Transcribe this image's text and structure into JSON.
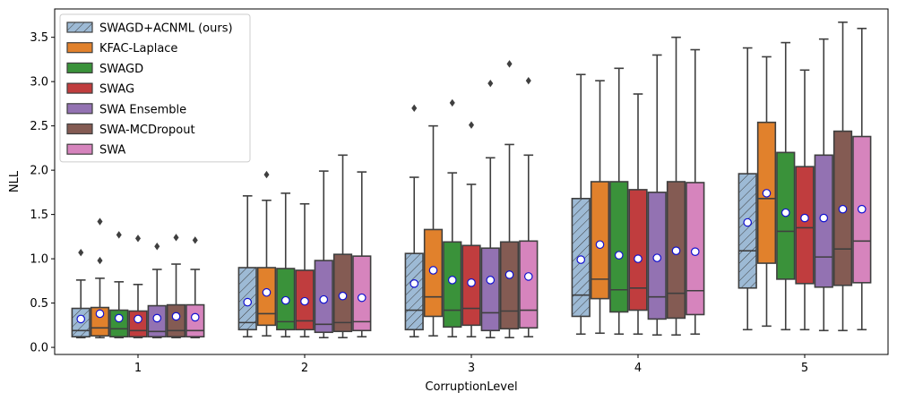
{
  "chart_data": {
    "type": "boxplot",
    "xlabel": "CorruptionLevel",
    "ylabel": "NLL",
    "ylim": [
      -0.08,
      3.82
    ],
    "yticks": [
      0.0,
      0.5,
      1.0,
      1.5,
      2.0,
      2.5,
      3.0,
      3.5
    ],
    "ytick_labels": [
      "0.0",
      "0.5",
      "1.0",
      "1.5",
      "2.0",
      "2.5",
      "3.0",
      "3.5"
    ],
    "categories": [
      "1",
      "2",
      "3",
      "4",
      "5"
    ],
    "legend_position": "top-left",
    "series": [
      {
        "name": "SWAGD+ACNML (ours)",
        "color": "#9dbad5",
        "hatch": true,
        "boxes": [
          {
            "q1": 0.12,
            "median": 0.19,
            "q3": 0.44,
            "whislo": 0.11,
            "whishi": 0.76,
            "mean": 0.32,
            "outliers": [
              1.07
            ]
          },
          {
            "q1": 0.2,
            "median": 0.28,
            "q3": 0.9,
            "whislo": 0.12,
            "whishi": 1.71,
            "mean": 0.51,
            "outliers": []
          },
          {
            "q1": 0.2,
            "median": 0.42,
            "q3": 1.06,
            "whislo": 0.12,
            "whishi": 1.92,
            "mean": 0.72,
            "outliers": [
              2.7
            ]
          },
          {
            "q1": 0.35,
            "median": 0.59,
            "q3": 1.68,
            "whislo": 0.15,
            "whishi": 3.08,
            "mean": 0.99,
            "outliers": []
          },
          {
            "q1": 0.67,
            "median": 1.09,
            "q3": 1.96,
            "whislo": 0.2,
            "whishi": 3.38,
            "mean": 1.41,
            "outliers": []
          }
        ]
      },
      {
        "name": "KFAC-Laplace",
        "color": "#e1812c",
        "hatch": false,
        "boxes": [
          {
            "q1": 0.13,
            "median": 0.22,
            "q3": 0.45,
            "whislo": 0.11,
            "whishi": 0.78,
            "mean": 0.38,
            "outliers": [
              0.98,
              1.42
            ]
          },
          {
            "q1": 0.25,
            "median": 0.38,
            "q3": 0.9,
            "whislo": 0.13,
            "whishi": 1.66,
            "mean": 0.62,
            "outliers": [
              1.95
            ]
          },
          {
            "q1": 0.35,
            "median": 0.57,
            "q3": 1.33,
            "whislo": 0.13,
            "whishi": 2.5,
            "mean": 0.87,
            "outliers": []
          },
          {
            "q1": 0.55,
            "median": 0.77,
            "q3": 1.87,
            "whislo": 0.16,
            "whishi": 3.01,
            "mean": 1.16,
            "outliers": []
          },
          {
            "q1": 0.95,
            "median": 1.68,
            "q3": 2.54,
            "whislo": 0.24,
            "whishi": 3.28,
            "mean": 1.74,
            "outliers": []
          }
        ]
      },
      {
        "name": "SWAGD",
        "color": "#3a923a",
        "hatch": false,
        "boxes": [
          {
            "q1": 0.12,
            "median": 0.21,
            "q3": 0.42,
            "whislo": 0.11,
            "whishi": 0.74,
            "mean": 0.33,
            "outliers": [
              1.27
            ]
          },
          {
            "q1": 0.2,
            "median": 0.29,
            "q3": 0.89,
            "whislo": 0.12,
            "whishi": 1.74,
            "mean": 0.53,
            "outliers": []
          },
          {
            "q1": 0.23,
            "median": 0.42,
            "q3": 1.19,
            "whislo": 0.12,
            "whishi": 1.97,
            "mean": 0.76,
            "outliers": [
              2.76
            ]
          },
          {
            "q1": 0.4,
            "median": 0.65,
            "q3": 1.87,
            "whislo": 0.15,
            "whishi": 3.15,
            "mean": 1.04,
            "outliers": []
          },
          {
            "q1": 0.77,
            "median": 1.31,
            "q3": 2.2,
            "whislo": 0.2,
            "whishi": 3.44,
            "mean": 1.52,
            "outliers": []
          }
        ]
      },
      {
        "name": "SWAG",
        "color": "#c03d3e",
        "hatch": false,
        "boxes": [
          {
            "q1": 0.12,
            "median": 0.19,
            "q3": 0.41,
            "whislo": 0.11,
            "whishi": 0.71,
            "mean": 0.32,
            "outliers": [
              1.23
            ]
          },
          {
            "q1": 0.2,
            "median": 0.3,
            "q3": 0.87,
            "whislo": 0.12,
            "whishi": 1.62,
            "mean": 0.52,
            "outliers": []
          },
          {
            "q1": 0.25,
            "median": 0.44,
            "q3": 1.15,
            "whislo": 0.12,
            "whishi": 1.84,
            "mean": 0.73,
            "outliers": [
              2.51
            ]
          },
          {
            "q1": 0.42,
            "median": 0.67,
            "q3": 1.78,
            "whislo": 0.15,
            "whishi": 2.86,
            "mean": 1.0,
            "outliers": []
          },
          {
            "q1": 0.72,
            "median": 1.35,
            "q3": 2.04,
            "whislo": 0.2,
            "whishi": 3.13,
            "mean": 1.46,
            "outliers": []
          }
        ]
      },
      {
        "name": "SWA Ensemble",
        "color": "#9372b2",
        "hatch": false,
        "boxes": [
          {
            "q1": 0.12,
            "median": 0.18,
            "q3": 0.47,
            "whislo": 0.11,
            "whishi": 0.88,
            "mean": 0.33,
            "outliers": [
              1.14
            ]
          },
          {
            "q1": 0.17,
            "median": 0.26,
            "q3": 0.98,
            "whislo": 0.11,
            "whishi": 1.99,
            "mean": 0.54,
            "outliers": []
          },
          {
            "q1": 0.19,
            "median": 0.39,
            "q3": 1.12,
            "whislo": 0.11,
            "whishi": 2.14,
            "mean": 0.76,
            "outliers": [
              2.98
            ]
          },
          {
            "q1": 0.32,
            "median": 0.57,
            "q3": 1.75,
            "whislo": 0.14,
            "whishi": 3.3,
            "mean": 1.01,
            "outliers": []
          },
          {
            "q1": 0.68,
            "median": 1.02,
            "q3": 2.17,
            "whislo": 0.19,
            "whishi": 3.48,
            "mean": 1.46,
            "outliers": []
          }
        ]
      },
      {
        "name": "SWA-MCDropout",
        "color": "#845b53",
        "hatch": false,
        "boxes": [
          {
            "q1": 0.12,
            "median": 0.19,
            "q3": 0.48,
            "whislo": 0.11,
            "whishi": 0.94,
            "mean": 0.35,
            "outliers": [
              1.24
            ]
          },
          {
            "q1": 0.18,
            "median": 0.28,
            "q3": 1.05,
            "whislo": 0.11,
            "whishi": 2.17,
            "mean": 0.58,
            "outliers": []
          },
          {
            "q1": 0.21,
            "median": 0.41,
            "q3": 1.19,
            "whislo": 0.11,
            "whishi": 2.29,
            "mean": 0.82,
            "outliers": [
              3.2
            ]
          },
          {
            "q1": 0.33,
            "median": 0.61,
            "q3": 1.87,
            "whislo": 0.14,
            "whishi": 3.5,
            "mean": 1.09,
            "outliers": []
          },
          {
            "q1": 0.7,
            "median": 1.11,
            "q3": 2.44,
            "whislo": 0.19,
            "whishi": 3.67,
            "mean": 1.56,
            "outliers": []
          }
        ]
      },
      {
        "name": "SWA",
        "color": "#d684bd",
        "hatch": false,
        "boxes": [
          {
            "q1": 0.12,
            "median": 0.19,
            "q3": 0.48,
            "whislo": 0.11,
            "whishi": 0.88,
            "mean": 0.34,
            "outliers": [
              1.21
            ]
          },
          {
            "q1": 0.19,
            "median": 0.29,
            "q3": 1.03,
            "whislo": 0.12,
            "whishi": 1.98,
            "mean": 0.56,
            "outliers": []
          },
          {
            "q1": 0.22,
            "median": 0.42,
            "q3": 1.2,
            "whislo": 0.12,
            "whishi": 2.17,
            "mean": 0.8,
            "outliers": [
              3.01
            ]
          },
          {
            "q1": 0.37,
            "median": 0.64,
            "q3": 1.86,
            "whislo": 0.15,
            "whishi": 3.36,
            "mean": 1.08,
            "outliers": []
          },
          {
            "q1": 0.73,
            "median": 1.2,
            "q3": 2.38,
            "whislo": 0.2,
            "whishi": 3.6,
            "mean": 1.56,
            "outliers": []
          }
        ]
      }
    ]
  }
}
